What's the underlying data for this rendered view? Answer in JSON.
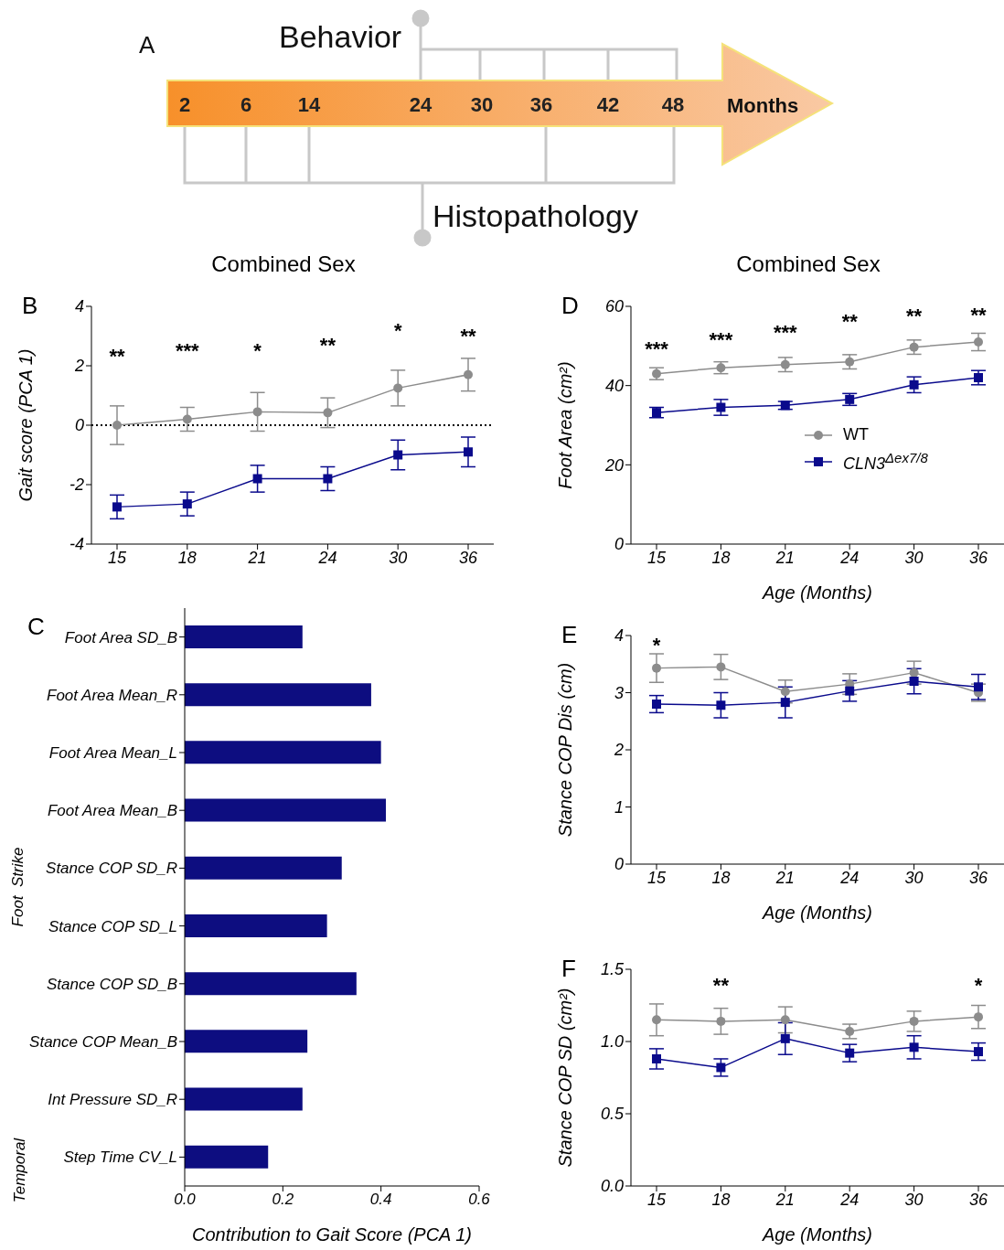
{
  "chart_data": [
    {
      "type": "other",
      "categories": [
        "2",
        "6",
        "14",
        "24",
        "30",
        "36",
        "42",
        "48"
      ],
      "annotations": [
        "A",
        "Behavior",
        "Months",
        "Histopathology"
      ]
    },
    {
      "type": "line",
      "title": "Combined Sex",
      "ylabel": "Gait score (PCA 1)",
      "categories": [
        "15",
        "18",
        "21",
        "24",
        "30",
        "36"
      ],
      "ylim": [
        -4,
        4
      ],
      "yticks": [
        -4,
        -2,
        0,
        2,
        4
      ],
      "series": [
        {
          "color": "#8c8c8c",
          "marker": "circle",
          "values": [
            0,
            0.2,
            0.45,
            0.42,
            1.25,
            1.7
          ],
          "errors": [
            0.65,
            0.4,
            0.65,
            0.5,
            0.6,
            0.55
          ]
        },
        {
          "color": "#0a0a8c",
          "marker": "square",
          "values": [
            -2.75,
            -2.65,
            -1.8,
            -1.8,
            -1.0,
            -0.9
          ],
          "errors": [
            0.4,
            0.4,
            0.45,
            0.4,
            0.5,
            0.5
          ]
        }
      ],
      "ref_lines": [
        {
          "axis": "y",
          "value": 0,
          "line_style": "dotted",
          "color": "#000000"
        }
      ],
      "annotations": [
        "B",
        "**",
        "***",
        "*",
        "**",
        "*",
        "**"
      ]
    },
    {
      "type": "bar",
      "orientation": "horizontal",
      "xlabel": "Contribution to Gait Score (PCA 1)",
      "categories": [
        "Foot Area SD_B",
        "Foot Area Mean_R",
        "Foot Area Mean_L",
        "Foot Area Mean_B",
        "Stance COP SD_R",
        "Stance COP SD_L",
        "Stance COP SD_B",
        "Stance COP Mean_B",
        "Int Pressure SD_R",
        "Step Time CV_L"
      ],
      "values": [
        0.24,
        0.38,
        0.4,
        0.41,
        0.32,
        0.29,
        0.35,
        0.25,
        0.24,
        0.17
      ],
      "color": "#0d0d80",
      "xlim": [
        0,
        0.6
      ],
      "xticks": [
        {
          "value": 0,
          "label": "0.0"
        },
        0.2,
        0.4,
        0.6
      ],
      "annotations": [
        "C",
        "Foot  Strike",
        "Temporal"
      ]
    },
    {
      "type": "line",
      "title": "Combined Sex",
      "ylabel": "Foot Area (cm²)",
      "xlabel": "Age (Months)",
      "categories": [
        "15",
        "18",
        "21",
        "24",
        "30",
        "36"
      ],
      "ylim": [
        0,
        60
      ],
      "yticks": [
        0,
        20,
        40,
        60
      ],
      "legend": "right",
      "series": [
        {
          "name": "WT",
          "color": "#8c8c8c",
          "marker": "circle",
          "values": [
            43,
            44.5,
            45.3,
            46,
            49.7,
            51
          ],
          "errors": [
            1.5,
            1.5,
            1.8,
            1.8,
            1.8,
            2.2
          ]
        },
        {
          "name": "CLN3$^{Δex7/8}$",
          "color": "#0a0a8c",
          "marker": "square",
          "values": [
            33.2,
            34.5,
            35,
            36.5,
            40.2,
            42
          ],
          "errors": [
            1.3,
            2,
            1,
            1.5,
            2,
            1.8
          ]
        }
      ],
      "annotations": [
        "D",
        "***",
        "***",
        "***",
        "**",
        "**",
        "**"
      ]
    },
    {
      "type": "line",
      "ylabel": "Stance COP Dis (cm)",
      "xlabel": "Age (Months)",
      "categories": [
        "15",
        "18",
        "21",
        "24",
        "30",
        "36"
      ],
      "ylim": [
        0,
        4
      ],
      "yticks": [
        0,
        1,
        2,
        3,
        4
      ],
      "series": [
        {
          "color": "#8c8c8c",
          "marker": "circle",
          "values": [
            3.43,
            3.45,
            3.02,
            3.15,
            3.35,
            3.0
          ],
          "errors": [
            0.25,
            0.22,
            0.2,
            0.18,
            0.2,
            0.15
          ]
        },
        {
          "color": "#0a0a8c",
          "marker": "square",
          "values": [
            2.8,
            2.78,
            2.83,
            3.03,
            3.2,
            3.1
          ],
          "errors": [
            0.15,
            0.22,
            0.27,
            0.18,
            0.22,
            0.22
          ]
        }
      ],
      "annotations": [
        "E",
        "*"
      ]
    },
    {
      "type": "line",
      "ylabel": "Stance COP SD (cm²)",
      "xlabel": "Age (Months)",
      "categories": [
        "15",
        "18",
        "21",
        "24",
        "30",
        "36"
      ],
      "ylim": [
        0,
        1.5
      ],
      "yticks": [
        {
          "value": 0,
          "label": "0.0"
        },
        0.5,
        {
          "value": 1,
          "label": "1.0"
        },
        1.5
      ],
      "series": [
        {
          "color": "#8c8c8c",
          "marker": "circle",
          "values": [
            1.15,
            1.14,
            1.15,
            1.07,
            1.14,
            1.17
          ],
          "errors": [
            0.11,
            0.09,
            0.09,
            0.05,
            0.07,
            0.08
          ]
        },
        {
          "color": "#0a0a8c",
          "marker": "square",
          "values": [
            0.88,
            0.82,
            1.02,
            0.92,
            0.96,
            0.93
          ],
          "errors": [
            0.07,
            0.06,
            0.11,
            0.06,
            0.08,
            0.06
          ]
        }
      ],
      "annotations": [
        "F",
        "**",
        "*"
      ]
    }
  ]
}
